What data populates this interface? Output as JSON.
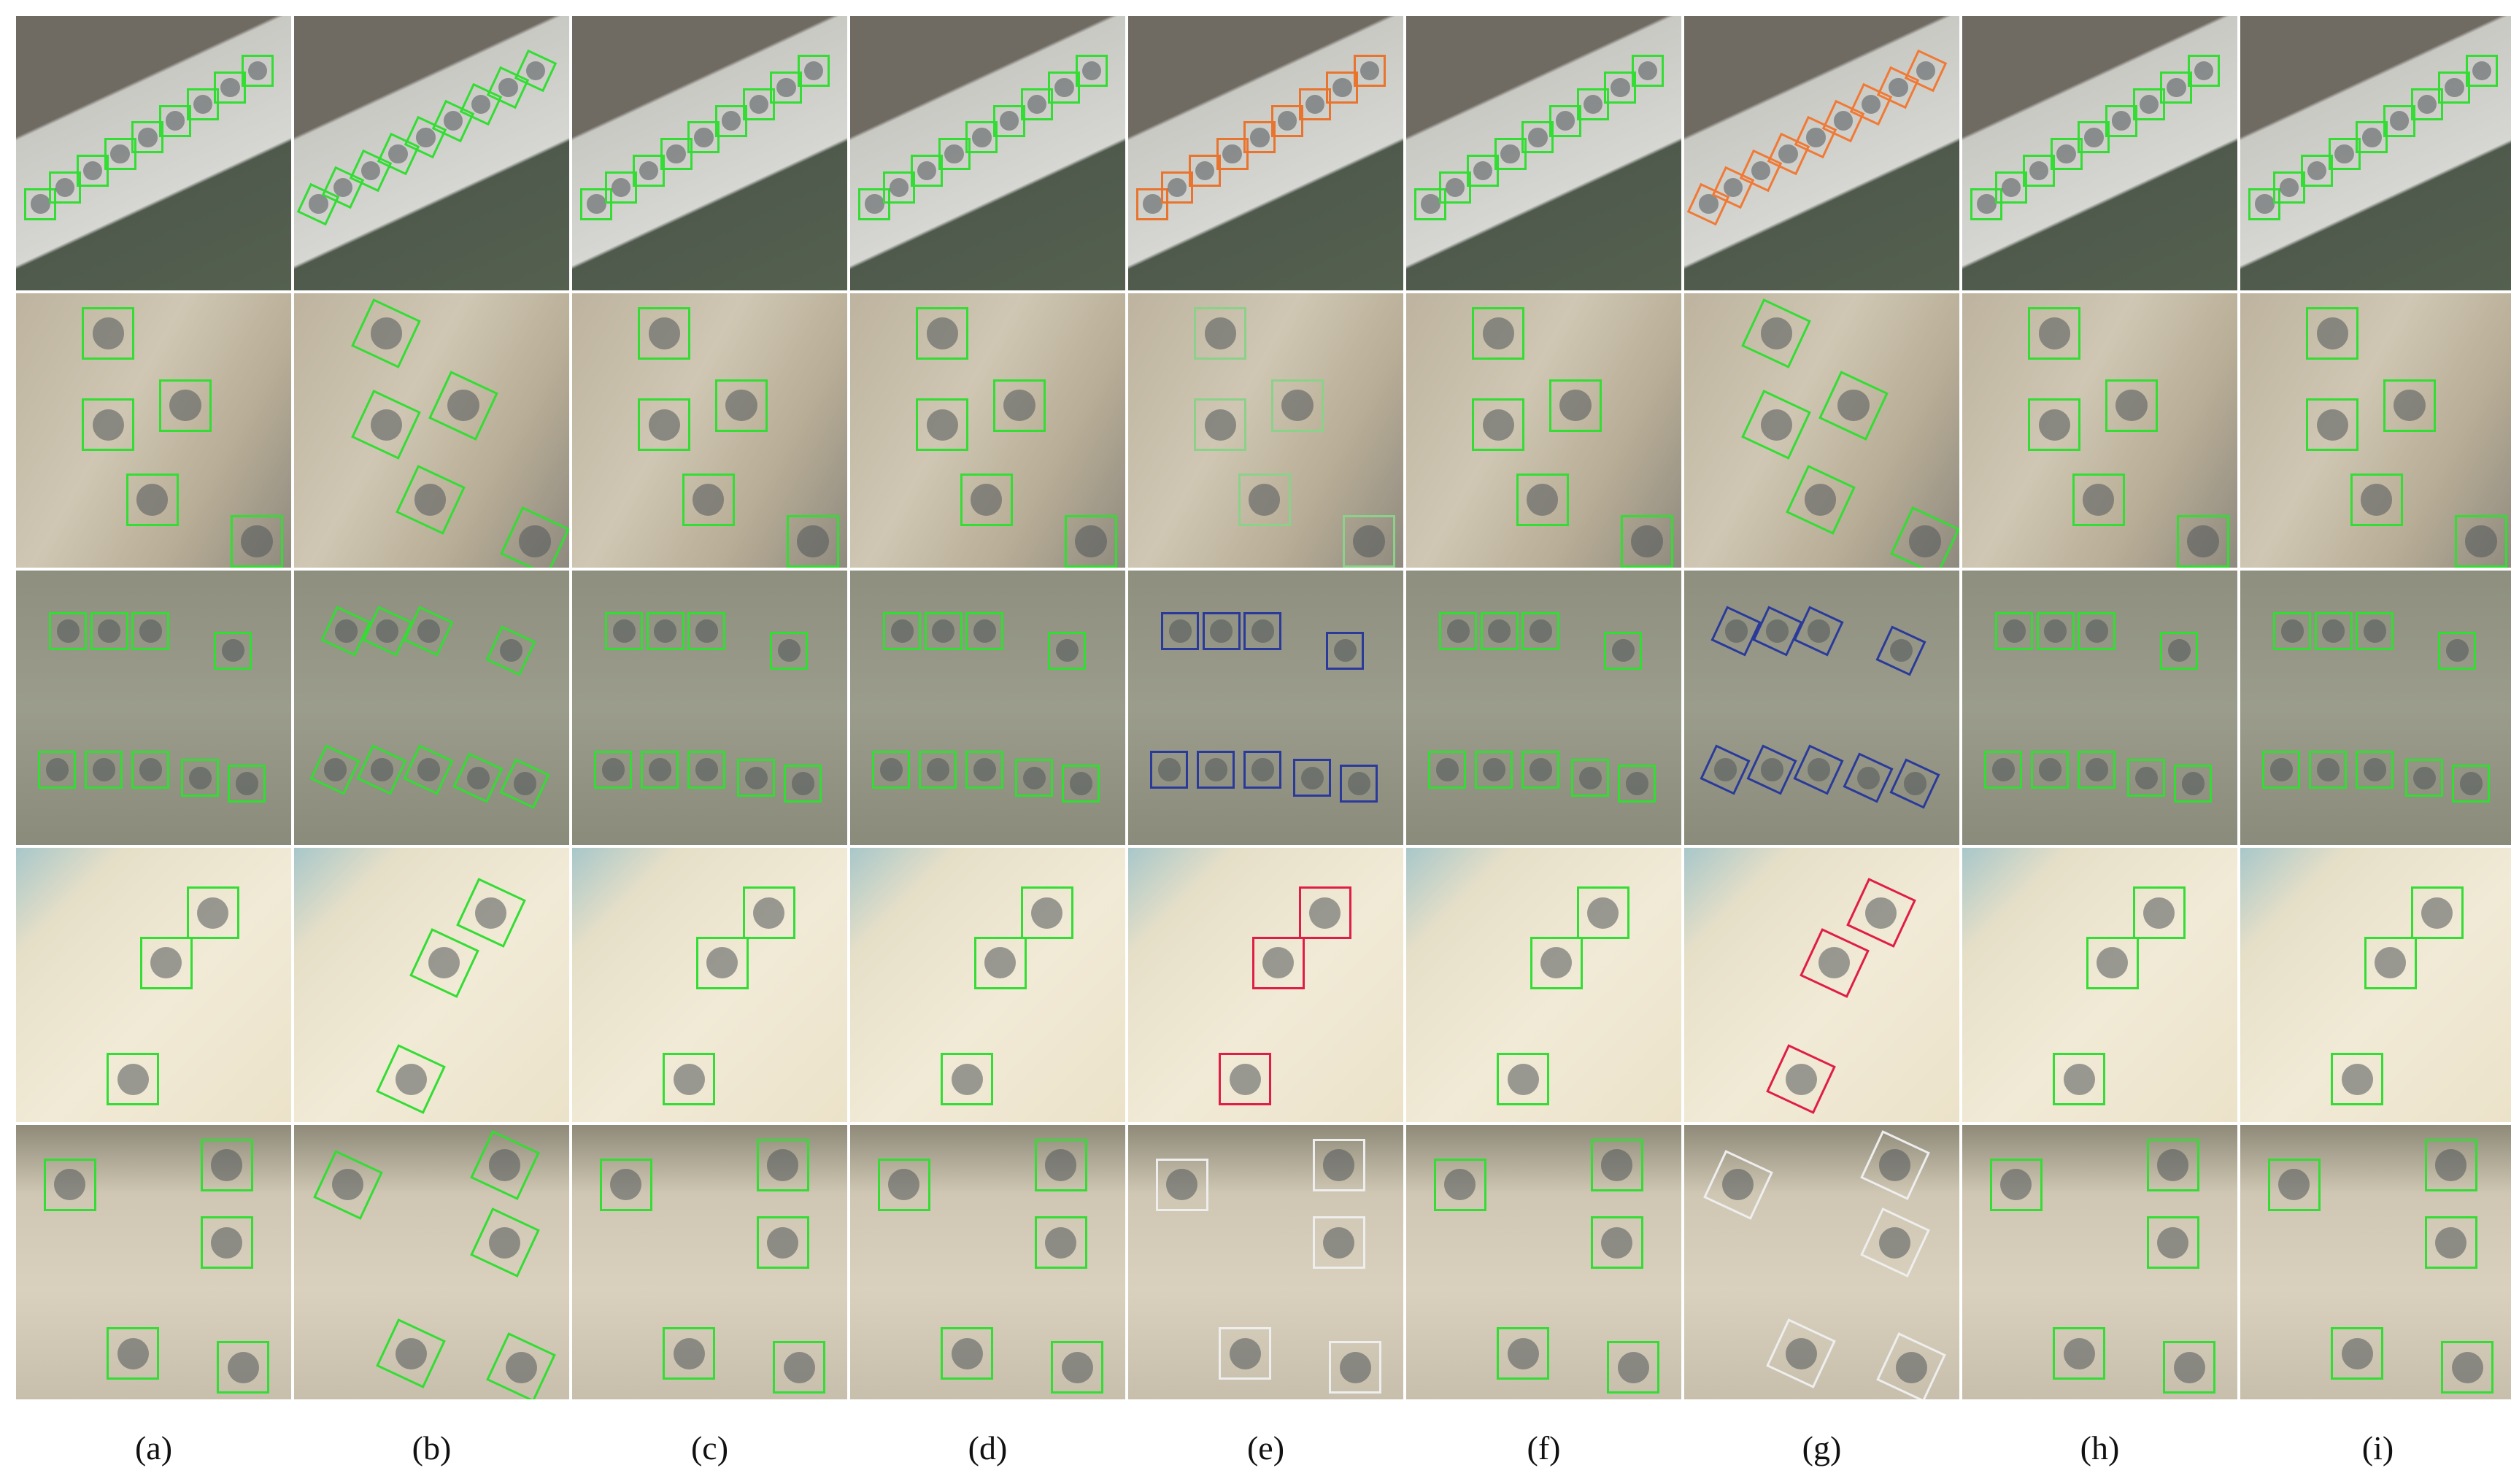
{
  "panel_labels": [
    "(a)",
    "(b)",
    "(c)",
    "(d)",
    "(e)",
    "(f)",
    "(g)",
    "(h)",
    "(i)"
  ]
}
